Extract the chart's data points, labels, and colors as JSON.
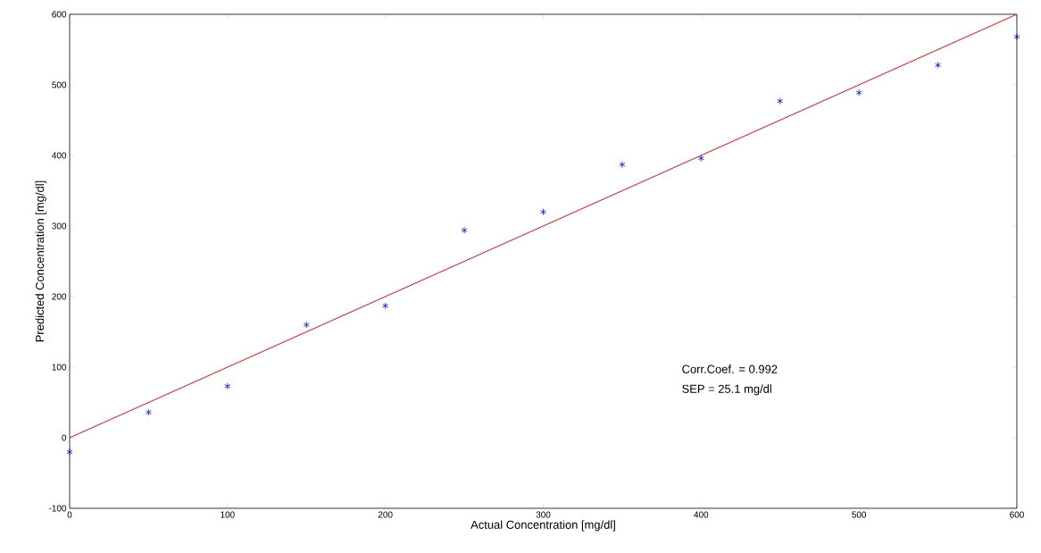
{
  "chart_data": {
    "type": "scatter",
    "xlabel": "Actual Concentration [mg/dl]",
    "ylabel": "Predicted Concentration [mg/dl]",
    "xlim": [
      0,
      600
    ],
    "ylim": [
      -100,
      600
    ],
    "xticks": [
      0,
      100,
      200,
      300,
      400,
      500,
      600
    ],
    "yticks": [
      -100,
      0,
      100,
      200,
      300,
      400,
      500,
      600
    ],
    "grid": false,
    "annotations": [
      "Corr.Coef. = 0.992",
      "SEP = 25.1 mg/dl"
    ],
    "series": [
      {
        "color": "#0000ff",
        "marker": "cross",
        "x": [
          0,
          50,
          100,
          150,
          200,
          250,
          300,
          350,
          400,
          450,
          500,
          550,
          600
        ],
        "values": [
          -20,
          36,
          73,
          160,
          187,
          294,
          320,
          387,
          396,
          477,
          489,
          528,
          568
        ]
      },
      {
        "type": "line",
        "color": "#ff0000",
        "marker": "none",
        "line_style": "solid",
        "x": [
          0,
          600
        ],
        "values": [
          0,
          600
        ]
      }
    ]
  }
}
